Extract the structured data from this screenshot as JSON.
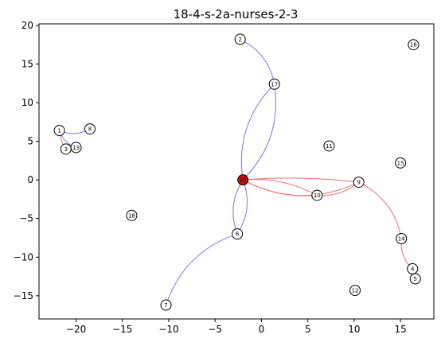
{
  "chart_data": {
    "type": "scatter",
    "title": "18-4-s-2a-nurses-2-3",
    "xlabel": "",
    "ylabel": "",
    "xlim": [
      -24,
      18.6
    ],
    "ylim": [
      -18,
      20.2
    ],
    "xticks": [
      -20,
      -15,
      -10,
      -5,
      0,
      5,
      10,
      15
    ],
    "yticks": [
      -15,
      -10,
      -5,
      0,
      5,
      10,
      15,
      20
    ],
    "grid": false,
    "colors": {
      "blue_edge": "#7a7ae6",
      "red_edge": "#f07070",
      "node_fill": "#ffffff",
      "highlight_fill": "#cc1111",
      "node_stroke": "#000000"
    },
    "nodes": [
      {
        "id": "1",
        "x": -21.8,
        "y": 6.4
      },
      {
        "id": "2",
        "x": -2.3,
        "y": 18.2
      },
      {
        "id": "3",
        "x": -21.1,
        "y": 4.0
      },
      {
        "id": "4",
        "x": 16.3,
        "y": -11.5
      },
      {
        "id": "5",
        "x": 16.6,
        "y": -12.8
      },
      {
        "id": "6",
        "x": -2.6,
        "y": -7.0
      },
      {
        "id": "7",
        "x": -10.3,
        "y": -16.2
      },
      {
        "id": "8",
        "x": -18.5,
        "y": 6.6
      },
      {
        "id": "9",
        "x": 10.5,
        "y": -0.3
      },
      {
        "id": "10",
        "x": 6.0,
        "y": -2.0
      },
      {
        "id": "11",
        "x": 7.3,
        "y": 4.4
      },
      {
        "id": "12",
        "x": 10.1,
        "y": -14.3
      },
      {
        "id": "13",
        "x": -20.0,
        "y": 4.2
      },
      {
        "id": "14",
        "x": 15.1,
        "y": -7.6
      },
      {
        "id": "15",
        "x": 15.0,
        "y": 2.2
      },
      {
        "id": "16",
        "x": 16.4,
        "y": 17.5
      },
      {
        "id": "17",
        "x": 1.4,
        "y": 12.4
      },
      {
        "id": "18",
        "x": -14.0,
        "y": -4.6
      },
      {
        "id": "19",
        "x": -2.0,
        "y": 0.0,
        "highlight": true
      }
    ],
    "edges": [
      {
        "from": "1",
        "to": "8",
        "color": "blue",
        "bend": 0.25
      },
      {
        "from": "1",
        "to": "13",
        "color": "blue",
        "bend": 0.25
      },
      {
        "from": "1",
        "to": "3",
        "color": "red",
        "bend": 0.15
      },
      {
        "from": "19",
        "to": "17",
        "color": "blue",
        "bend": 0.25
      },
      {
        "from": "19",
        "to": "17",
        "color": "blue",
        "bend": -0.25
      },
      {
        "from": "17",
        "to": "2",
        "color": "blue",
        "bend": 0.25
      },
      {
        "from": "19",
        "to": "6",
        "color": "blue",
        "bend": 0.25
      },
      {
        "from": "19",
        "to": "6",
        "color": "blue",
        "bend": -0.25
      },
      {
        "from": "6",
        "to": "7",
        "color": "blue",
        "bend": 0.25
      },
      {
        "from": "19",
        "to": "9",
        "color": "red",
        "bend": 0.25
      },
      {
        "from": "19",
        "to": "9",
        "color": "red",
        "bend": -0.05
      },
      {
        "from": "19",
        "to": "10",
        "color": "red",
        "bend": 0.15
      },
      {
        "from": "19",
        "to": "10",
        "color": "red",
        "bend": -0.15
      },
      {
        "from": "10",
        "to": "9",
        "color": "red",
        "bend": 0.2
      },
      {
        "from": "9",
        "to": "14",
        "color": "red",
        "bend": -0.25
      },
      {
        "from": "14",
        "to": "4",
        "color": "red",
        "bend": 0.25
      }
    ]
  }
}
